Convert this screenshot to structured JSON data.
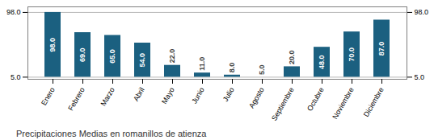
{
  "chart_data": {
    "type": "bar",
    "title": "Precipitaciones Medias en romanillos de atienza",
    "categories": [
      "Enero",
      "Febrero",
      "Marzo",
      "Abril",
      "Mayo",
      "Junio",
      "Julio",
      "Agosto",
      "Septiembre",
      "Octubre",
      "Noviembre",
      "Diciembre"
    ],
    "values": [
      98.0,
      69.0,
      65.0,
      54.0,
      22.0,
      11.0,
      8.0,
      5.0,
      20.0,
      48.0,
      70.0,
      87.0
    ],
    "value_labels": [
      "98.0",
      "69.0",
      "65.0",
      "54.0",
      "22.0",
      "11.0",
      "8.0",
      "5.0",
      "20.0",
      "48.0",
      "70.0",
      "87.0"
    ],
    "color": "#1b6080",
    "ylim": [
      2,
      106
    ],
    "yticks": [
      {
        "value": 5,
        "label": "5.0"
      },
      {
        "value": 98,
        "label": "98.0"
      }
    ],
    "grid": true,
    "data_labels": true
  }
}
